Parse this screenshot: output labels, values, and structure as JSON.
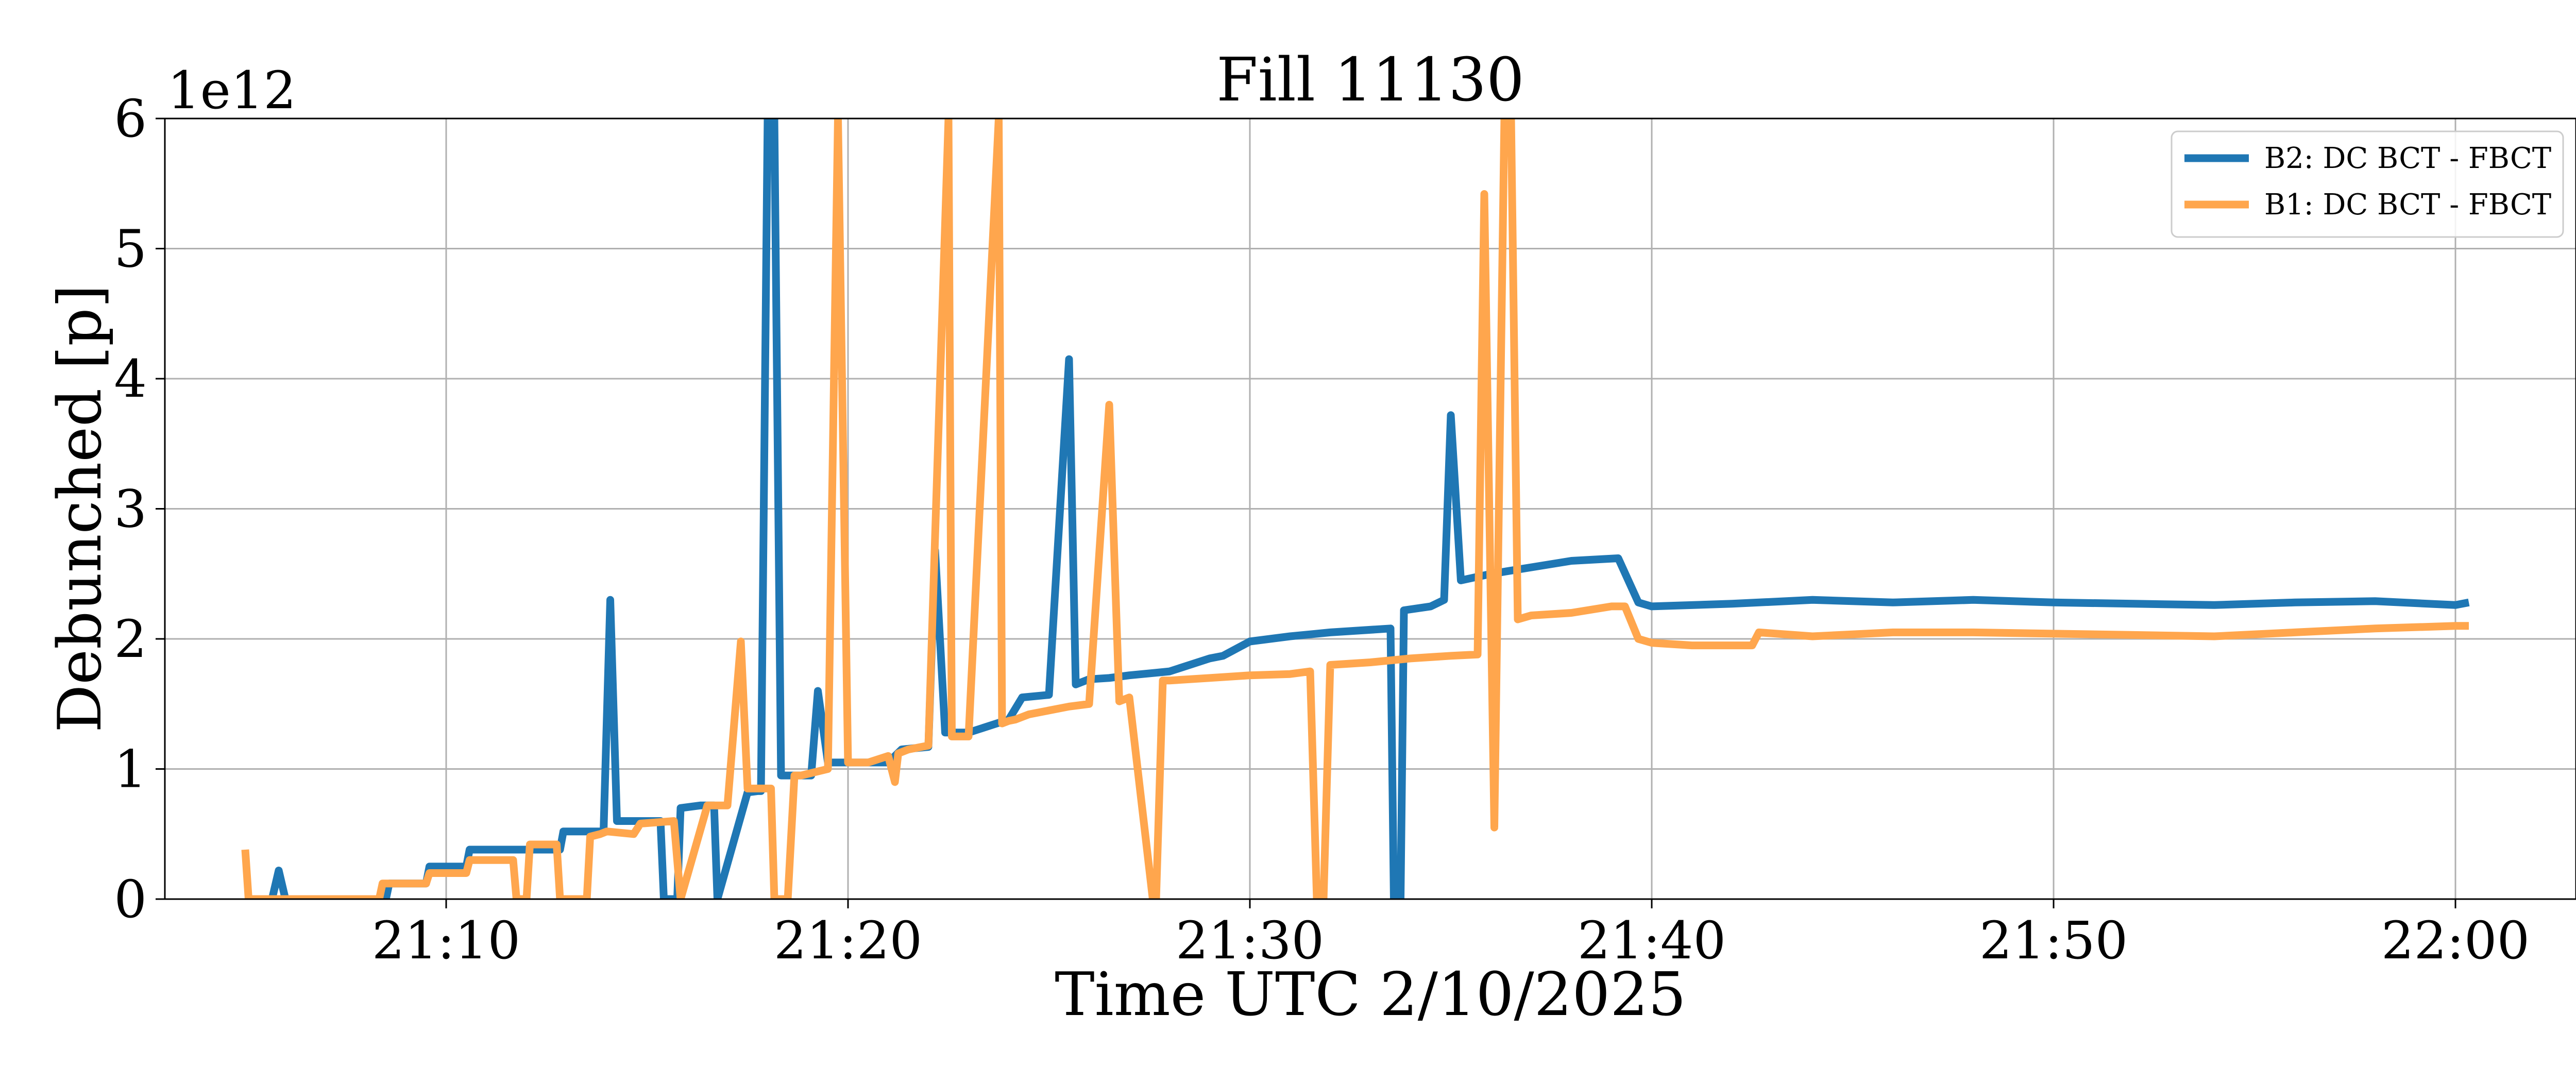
{
  "chart_data": {
    "type": "line",
    "title": "Fill 11130",
    "xlabel": "Time UTC 2/10/2025",
    "ylabel": "Debunched [p]",
    "y_offset_label": "1e12",
    "y_scale": 1000000000000.0,
    "xlim": [
      "21:03:00",
      "22:03:00"
    ],
    "ylim": [
      0,
      6000000000000.0
    ],
    "x_ticks": [
      "21:10",
      "21:20",
      "21:30",
      "21:40",
      "21:50",
      "22:00"
    ],
    "y_ticks": [
      0,
      1000000000000.0,
      2000000000000.0,
      3000000000000.0,
      4000000000000.0,
      5000000000000.0,
      6000000000000.0
    ],
    "y_tick_labels": [
      "0",
      "1",
      "2",
      "3",
      "4",
      "5",
      "6"
    ],
    "grid": true,
    "legend_position": "top-right",
    "colors": {
      "B2": "#1f77b4",
      "B1": "#ffa64d"
    },
    "series": [
      {
        "name": "B2: DC BCT - FBCT",
        "color": "#1f77b4",
        "x": [
          "21:05:00",
          "21:05:40",
          "21:05:50",
          "21:06:00",
          "21:06:20",
          "21:07:00",
          "21:08:00",
          "21:08:30",
          "21:08:35",
          "21:09:30",
          "21:09:35",
          "21:10:30",
          "21:10:35",
          "21:11:45",
          "21:11:50",
          "21:12:50",
          "21:12:55",
          "21:13:50",
          "21:13:55",
          "21:14:05",
          "21:14:15",
          "21:15:00",
          "21:15:20",
          "21:15:25",
          "21:15:45",
          "21:15:50",
          "21:16:20",
          "21:16:30",
          "21:16:40",
          "21:16:45",
          "21:17:30",
          "21:17:45",
          "21:17:50",
          "21:18:00",
          "21:18:10",
          "21:18:20",
          "21:18:30",
          "21:19:00",
          "21:19:05",
          "21:19:15",
          "21:19:30",
          "21:20:00",
          "21:21:00",
          "21:21:20",
          "21:22:00",
          "21:22:10",
          "21:22:25",
          "21:23:00",
          "21:24:00",
          "21:24:20",
          "21:25:00",
          "21:25:30",
          "21:25:40",
          "21:25:50",
          "21:26:00",
          "21:26:30",
          "21:27:00",
          "21:27:40",
          "21:28:00",
          "21:29:00",
          "21:29:20",
          "21:30:00",
          "21:31:00",
          "21:32:00",
          "21:33:30",
          "21:33:35",
          "21:33:45",
          "21:33:50",
          "21:34:30",
          "21:34:50",
          "21:35:00",
          "21:35:15",
          "21:36:00",
          "21:37:00",
          "21:38:00",
          "21:39:10",
          "21:39:40",
          "21:40:00",
          "21:42:00",
          "21:44:00",
          "21:46:00",
          "21:48:00",
          "21:50:00",
          "21:52:00",
          "21:54:00",
          "21:56:00",
          "21:58:00",
          "22:00:00",
          "22:00:20"
        ],
        "y": [
          0.0,
          0.0,
          220000000000.0,
          0.0,
          0.0,
          0.0,
          0.0,
          0.0,
          120000000000.0,
          120000000000.0,
          250000000000.0,
          250000000000.0,
          380000000000.0,
          380000000000.0,
          380000000000.0,
          380000000000.0,
          520000000000.0,
          520000000000.0,
          520000000000.0,
          2300000000000.0,
          600000000000.0,
          600000000000.0,
          600000000000.0,
          0.0,
          0.0,
          700000000000.0,
          720000000000.0,
          720000000000.0,
          720000000000.0,
          0.0,
          820000000000.0,
          830000000000.0,
          830000000000.0,
          6000000000000.0,
          6000000000000.0,
          950000000000.0,
          950000000000.0,
          950000000000.0,
          950000000000.0,
          1600000000000.0,
          1050000000000.0,
          1050000000000.0,
          1050000000000.0,
          1150000000000.0,
          1170000000000.0,
          2680000000000.0,
          1280000000000.0,
          1280000000000.0,
          1380000000000.0,
          1550000000000.0,
          1570000000000.0,
          4150000000000.0,
          1650000000000.0,
          1670000000000.0,
          1690000000000.0,
          1700000000000.0,
          1720000000000.0,
          1740000000000.0,
          1750000000000.0,
          1850000000000.0,
          1870000000000.0,
          1980000000000.0,
          2020000000000.0,
          2050000000000.0,
          2080000000000.0,
          0.0,
          0.0,
          2220000000000.0,
          2250000000000.0,
          2300000000000.0,
          3720000000000.0,
          2450000000000.0,
          2500000000000.0,
          2550000000000.0,
          2600000000000.0,
          2620000000000.0,
          2280000000000.0,
          2250000000000.0,
          2270000000000.0,
          2300000000000.0,
          2280000000000.0,
          2300000000000.0,
          2280000000000.0,
          2270000000000.0,
          2260000000000.0,
          2280000000000.0,
          2290000000000.0,
          2260000000000.0,
          2280000000000.0
        ]
      },
      {
        "name": "B1: DC BCT - FBCT",
        "color": "#ffa64d",
        "x": [
          "21:05:00",
          "21:05:05",
          "21:06:00",
          "21:07:00",
          "21:08:00",
          "21:08:20",
          "21:08:25",
          "21:09:30",
          "21:09:35",
          "21:10:30",
          "21:10:35",
          "21:11:40",
          "21:11:45",
          "21:12:00",
          "21:12:05",
          "21:12:45",
          "21:12:50",
          "21:13:30",
          "21:13:35",
          "21:13:50",
          "21:14:00",
          "21:14:40",
          "21:14:50",
          "21:15:40",
          "21:15:50",
          "21:16:30",
          "21:16:40",
          "21:17:00",
          "21:17:20",
          "21:17:30",
          "21:18:05",
          "21:18:10",
          "21:18:30",
          "21:18:40",
          "21:18:50",
          "21:19:30",
          "21:19:45",
          "21:20:00",
          "21:20:10",
          "21:20:30",
          "21:21:00",
          "21:21:10",
          "21:21:15",
          "21:21:30",
          "21:22:00",
          "21:22:30",
          "21:22:35",
          "21:22:45",
          "21:23:00",
          "21:23:45",
          "21:23:50",
          "21:24:00",
          "21:24:10",
          "21:24:30",
          "21:25:00",
          "21:25:30",
          "21:26:00",
          "21:26:30",
          "21:26:45",
          "21:27:00",
          "21:27:35",
          "21:27:40",
          "21:27:50",
          "21:28:00",
          "21:29:00",
          "21:30:00",
          "21:31:00",
          "21:31:30",
          "21:31:40",
          "21:31:50",
          "21:32:00",
          "21:33:00",
          "21:34:00",
          "21:35:00",
          "21:35:40",
          "21:35:50",
          "21:36:05",
          "21:36:20",
          "21:36:30",
          "21:36:40",
          "21:37:00",
          "21:38:00",
          "21:39:00",
          "21:39:20",
          "21:39:40",
          "21:40:00",
          "21:41:00",
          "21:42:00",
          "21:42:30",
          "21:42:40",
          "21:44:00",
          "21:46:00",
          "21:48:00",
          "21:50:00",
          "21:52:00",
          "21:54:00",
          "21:56:00",
          "21:58:00",
          "22:00:00",
          "22:00:20"
        ],
        "y": [
          380000000000.0,
          0.0,
          0.0,
          0.0,
          0.0,
          0.0,
          120000000000.0,
          120000000000.0,
          200000000000.0,
          200000000000.0,
          300000000000.0,
          300000000000.0,
          0.0,
          0.0,
          420000000000.0,
          420000000000.0,
          0.0,
          0.0,
          480000000000.0,
          500000000000.0,
          520000000000.0,
          500000000000.0,
          580000000000.0,
          600000000000.0,
          0.0,
          720000000000.0,
          720000000000.0,
          720000000000.0,
          1980000000000.0,
          850000000000.0,
          850000000000.0,
          0.0,
          0.0,
          950000000000.0,
          950000000000.0,
          1000000000000.0,
          6000000000000.0,
          1050000000000.0,
          1050000000000.0,
          1050000000000.0,
          1100000000000.0,
          900000000000.0,
          1120000000000.0,
          1150000000000.0,
          1180000000000.0,
          6000000000000.0,
          1250000000000.0,
          1250000000000.0,
          1250000000000.0,
          6000000000000.0,
          1350000000000.0,
          1370000000000.0,
          1380000000000.0,
          1420000000000.0,
          1450000000000.0,
          1480000000000.0,
          1500000000000.0,
          3800000000000.0,
          1520000000000.0,
          1550000000000.0,
          0.0,
          0.0,
          1680000000000.0,
          1680000000000.0,
          1700000000000.0,
          1720000000000.0,
          1730000000000.0,
          1750000000000.0,
          0.0,
          0.0,
          1800000000000.0,
          1820000000000.0,
          1850000000000.0,
          1870000000000.0,
          1880000000000.0,
          5420000000000.0,
          550000000000.0,
          6000000000000.0,
          6000000000000.0,
          2150000000000.0,
          2180000000000.0,
          2200000000000.0,
          2250000000000.0,
          2250000000000.0,
          2000000000000.0,
          1970000000000.0,
          1950000000000.0,
          1950000000000.0,
          1950000000000.0,
          2050000000000.0,
          2020000000000.0,
          2050000000000.0,
          2050000000000.0,
          2040000000000.0,
          2030000000000.0,
          2020000000000.0,
          2050000000000.0,
          2080000000000.0,
          2100000000000.0,
          2100000000000.0
        ]
      }
    ]
  }
}
